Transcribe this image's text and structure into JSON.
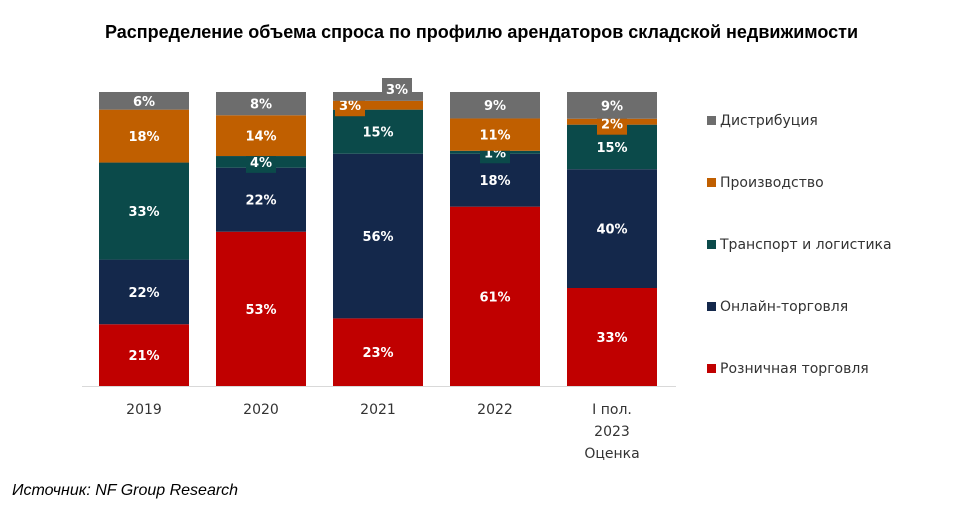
{
  "chart_data": {
    "type": "bar",
    "stacked": true,
    "normalized": true,
    "title": "Распределение объема спроса по профилю арендаторов складской недвижимости",
    "categories": [
      [
        "2019"
      ],
      [
        "2020"
      ],
      [
        "2021"
      ],
      [
        "2022"
      ],
      [
        "I пол.",
        "2023",
        "Оценка"
      ]
    ],
    "series": [
      {
        "name": "Розничная торговля",
        "color": "#c00000",
        "values": [
          21,
          53,
          23,
          61,
          33
        ]
      },
      {
        "name": "Онлайн-торговля",
        "color": "#14284b",
        "values": [
          22,
          22,
          56,
          18,
          40
        ]
      },
      {
        "name": "Транспорт и логистика",
        "color": "#0b4a4a",
        "values": [
          33,
          4,
          15,
          1,
          15
        ]
      },
      {
        "name": "Производство",
        "color": "#c05f00",
        "values": [
          18,
          14,
          3,
          11,
          2
        ]
      },
      {
        "name": "Дистрибуция",
        "color": "#6d6d6d",
        "values": [
          6,
          8,
          3,
          9,
          9
        ]
      }
    ],
    "value_suffix": "%",
    "legend_position": "right",
    "grid": false
  },
  "source": "Источник: NF Group Research"
}
